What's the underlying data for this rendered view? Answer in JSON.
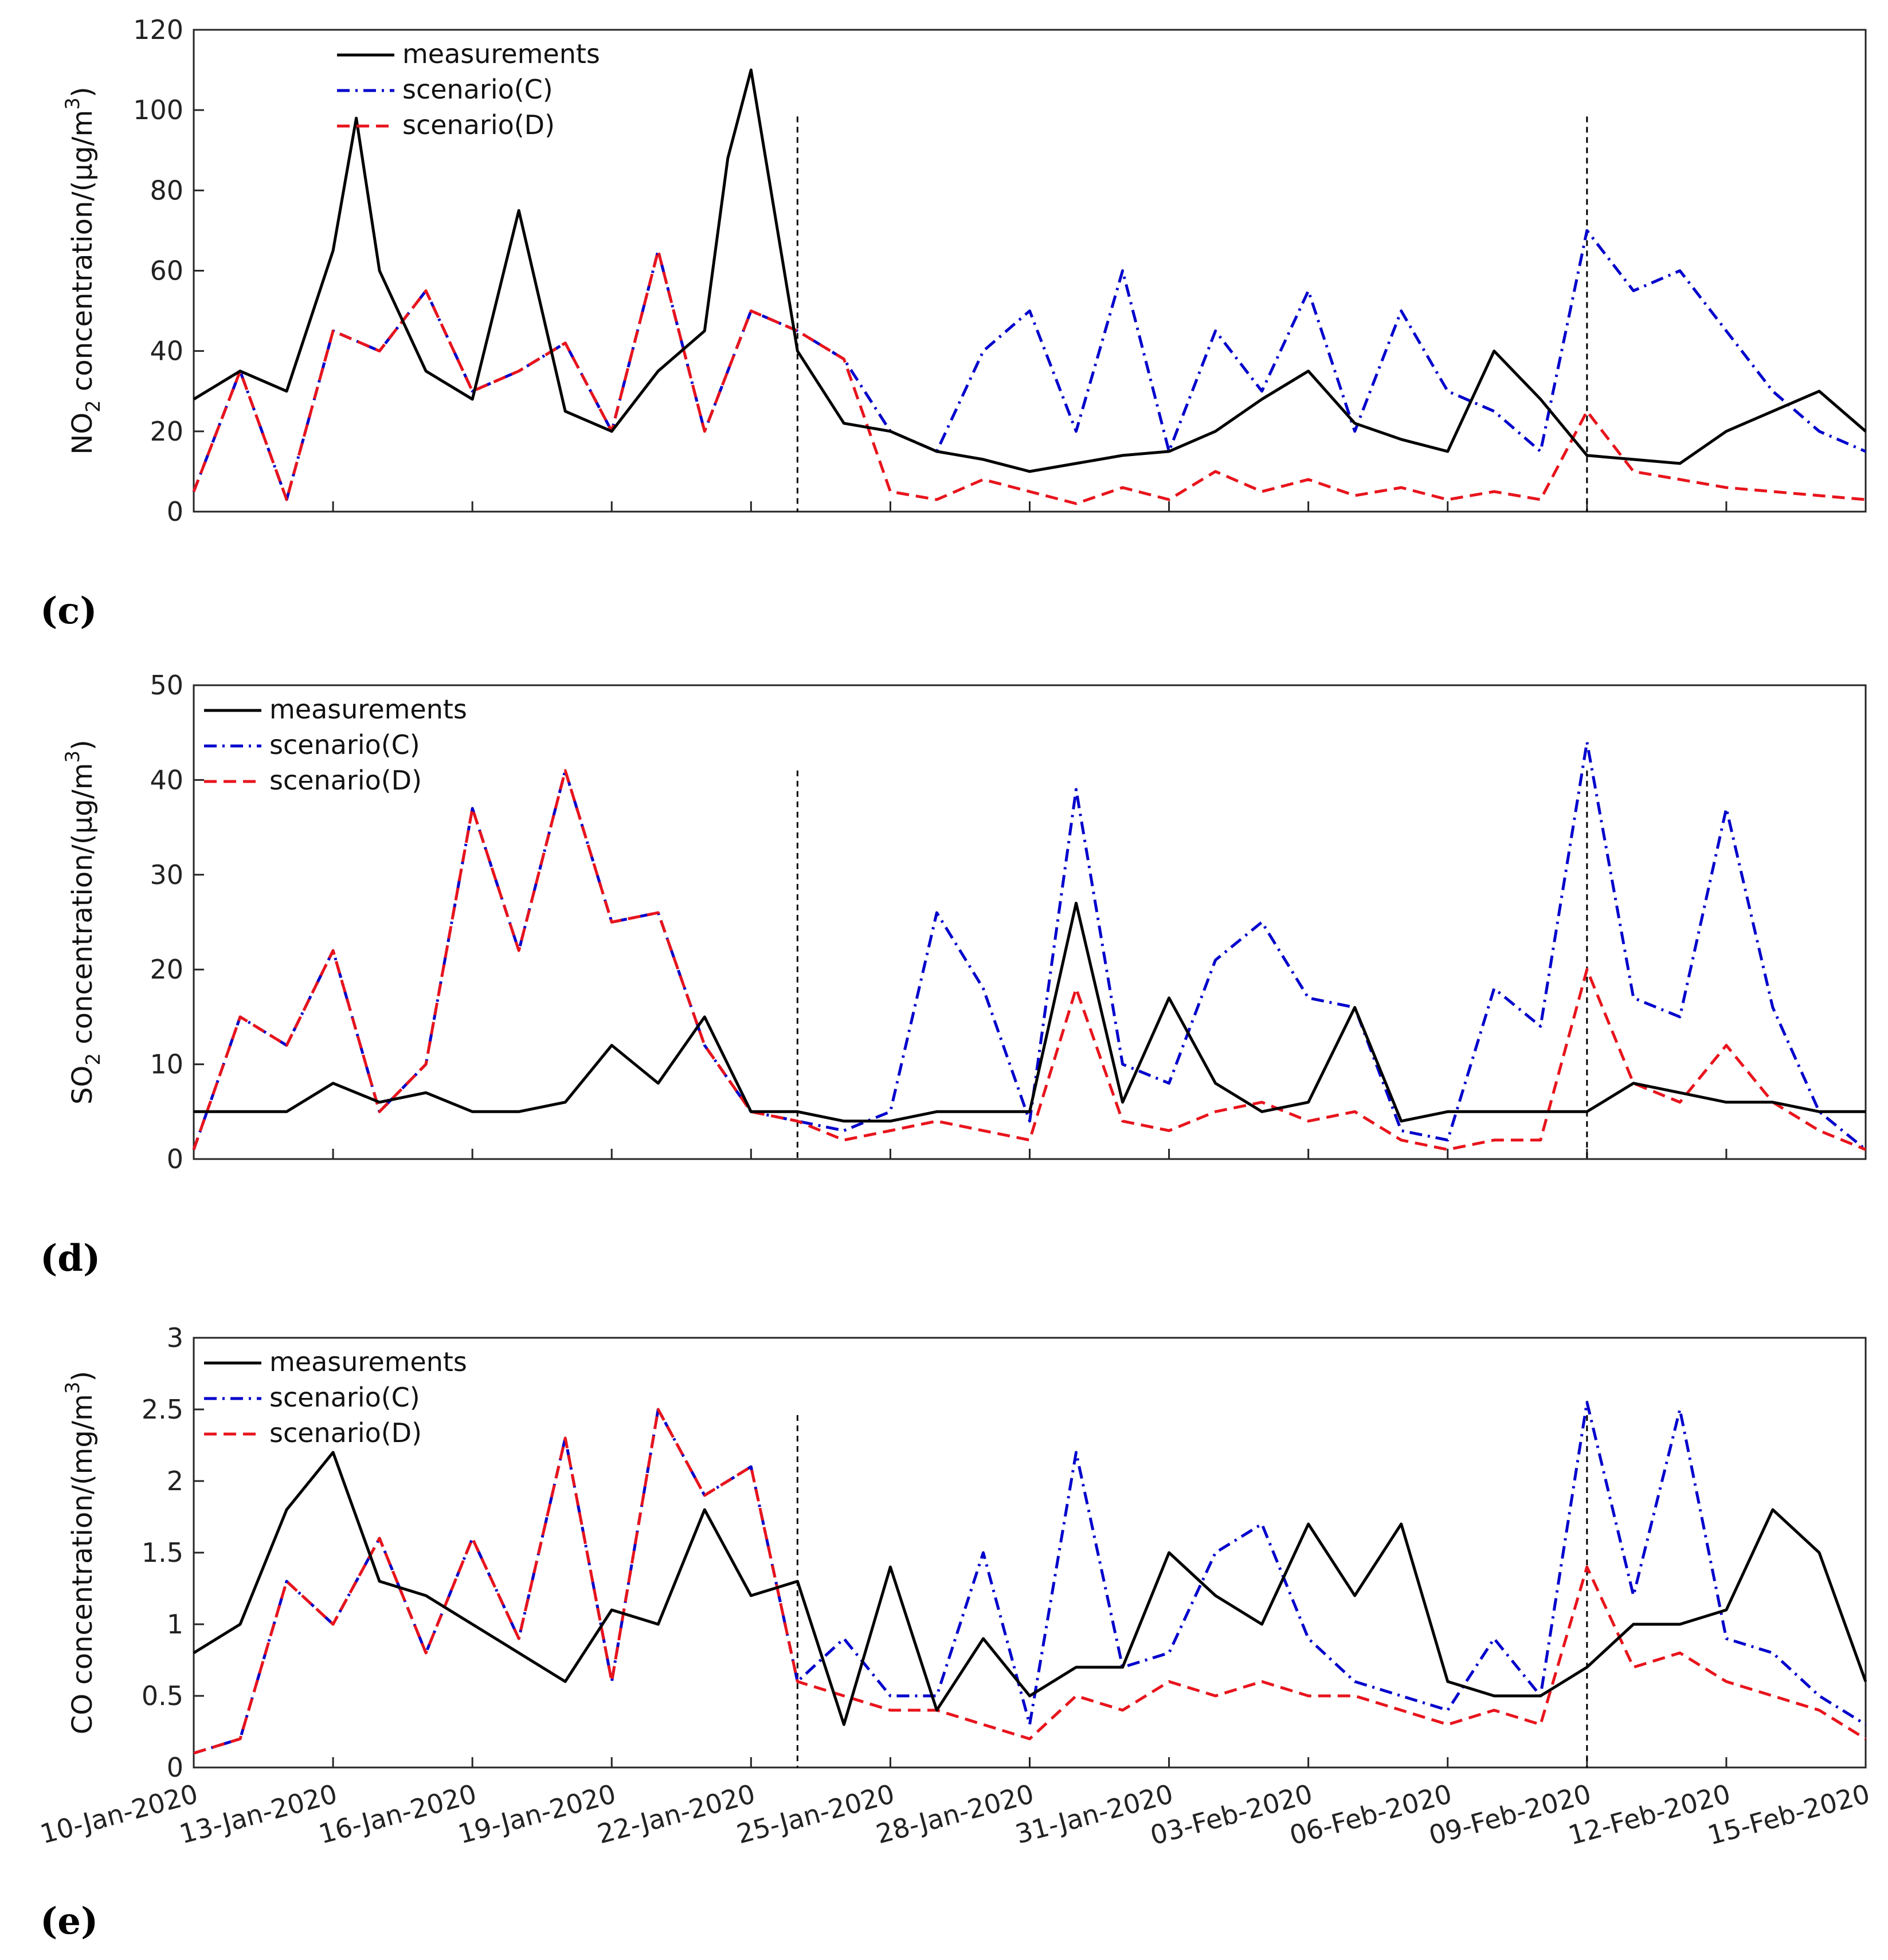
{
  "x_tick_labels": [
    "10-Jan-2020",
    "13-Jan-2020",
    "16-Jan-2020",
    "19-Jan-2020",
    "22-Jan-2020",
    "25-Jan-2020",
    "28-Jan-2020",
    "31-Jan-2020",
    "03-Feb-2020",
    "06-Feb-2020",
    "09-Feb-2020",
    "12-Feb-2020",
    "15-Feb-2020"
  ],
  "panel_labels": [
    "(c)",
    "(d)",
    "(e)"
  ],
  "legend": [
    "measurements",
    "scenario(C)",
    "scenario(D)"
  ],
  "colors": {
    "measurements": "#000000",
    "scenario_c": "#0000cc",
    "scenario_d": "#e8141c",
    "marker": "#000000"
  },
  "chart_data": [
    {
      "type": "line",
      "ylabel": "NO2 concentration/(μg/m3)",
      "ylabel_parts": {
        "a": "NO",
        "sub": "2",
        "b": " concentration/(",
        "mu": "μ",
        "c": "g/m",
        "sup": "3",
        "d": ")"
      },
      "ylim": [
        0,
        120
      ],
      "yticks": [
        0,
        20,
        40,
        60,
        80,
        100,
        120
      ],
      "xlim": [
        "2020-01-10",
        "2020-02-15"
      ],
      "vlines": [
        "2020-01-23",
        "2020-02-09"
      ],
      "legend_position": "top-left",
      "series": [
        {
          "name": "measurements",
          "style": "solid",
          "x": [
            "2020-01-10",
            "2020-01-11",
            "2020-01-12",
            "2020-01-13",
            "2020-01-13 12:00",
            "2020-01-14",
            "2020-01-15",
            "2020-01-16",
            "2020-01-17",
            "2020-01-18",
            "2020-01-19",
            "2020-01-20",
            "2020-01-21",
            "2020-01-21 12:00",
            "2020-01-22",
            "2020-01-23",
            "2020-01-24",
            "2020-01-25",
            "2020-01-26",
            "2020-01-27",
            "2020-01-28",
            "2020-01-29",
            "2020-01-30",
            "2020-01-31",
            "2020-02-01",
            "2020-02-02",
            "2020-02-03",
            "2020-02-04",
            "2020-02-05",
            "2020-02-06",
            "2020-02-07",
            "2020-02-08",
            "2020-02-09",
            "2020-02-10",
            "2020-02-11",
            "2020-02-12",
            "2020-02-13",
            "2020-02-14",
            "2020-02-15"
          ],
          "values": [
            28,
            35,
            30,
            65,
            98,
            60,
            35,
            28,
            75,
            25,
            20,
            35,
            45,
            88,
            110,
            40,
            22,
            20,
            15,
            13,
            10,
            12,
            14,
            15,
            20,
            28,
            35,
            22,
            18,
            15,
            40,
            28,
            14,
            13,
            12,
            20,
            25,
            30,
            20
          ]
        },
        {
          "name": "scenario(C)",
          "style": "dashdot",
          "x": [
            "2020-01-10",
            "2020-01-11",
            "2020-01-12",
            "2020-01-13",
            "2020-01-14",
            "2020-01-15",
            "2020-01-16",
            "2020-01-17",
            "2020-01-18",
            "2020-01-19",
            "2020-01-20",
            "2020-01-21",
            "2020-01-22",
            "2020-01-23",
            "2020-01-24",
            "2020-01-25",
            "2020-01-26",
            "2020-01-27",
            "2020-01-28",
            "2020-01-29",
            "2020-01-30",
            "2020-01-31",
            "2020-02-01",
            "2020-02-02",
            "2020-02-03",
            "2020-02-04",
            "2020-02-05",
            "2020-02-06",
            "2020-02-07",
            "2020-02-08",
            "2020-02-09",
            "2020-02-10",
            "2020-02-11",
            "2020-02-12",
            "2020-02-13",
            "2020-02-14",
            "2020-02-15"
          ],
          "values": [
            5,
            35,
            3,
            45,
            40,
            55,
            30,
            35,
            42,
            20,
            65,
            20,
            50,
            45,
            38,
            20,
            15,
            40,
            50,
            20,
            60,
            15,
            45,
            30,
            55,
            20,
            50,
            30,
            25,
            15,
            70,
            55,
            60,
            45,
            30,
            20,
            15
          ]
        },
        {
          "name": "scenario(D)",
          "style": "dashed",
          "x": [
            "2020-01-10",
            "2020-01-11",
            "2020-01-12",
            "2020-01-13",
            "2020-01-14",
            "2020-01-15",
            "2020-01-16",
            "2020-01-17",
            "2020-01-18",
            "2020-01-19",
            "2020-01-20",
            "2020-01-21",
            "2020-01-22",
            "2020-01-23",
            "2020-01-24",
            "2020-01-25",
            "2020-01-26",
            "2020-01-27",
            "2020-01-28",
            "2020-01-29",
            "2020-01-30",
            "2020-01-31",
            "2020-02-01",
            "2020-02-02",
            "2020-02-03",
            "2020-02-04",
            "2020-02-05",
            "2020-02-06",
            "2020-02-07",
            "2020-02-08",
            "2020-02-09",
            "2020-02-10",
            "2020-02-11",
            "2020-02-12",
            "2020-02-13",
            "2020-02-14",
            "2020-02-15"
          ],
          "values": [
            5,
            35,
            3,
            45,
            40,
            55,
            30,
            35,
            42,
            20,
            65,
            20,
            50,
            45,
            38,
            5,
            3,
            8,
            5,
            2,
            6,
            3,
            10,
            5,
            8,
            4,
            6,
            3,
            5,
            3,
            25,
            10,
            8,
            6,
            5,
            4,
            3
          ]
        }
      ]
    },
    {
      "type": "line",
      "ylabel": "SO2 concentration/(μg/m3)",
      "ylabel_parts": {
        "a": "SO",
        "sub": "2",
        "b": " concentration/(",
        "mu": "μ",
        "c": "g/m",
        "sup": "3",
        "d": ")"
      },
      "ylim": [
        0,
        50
      ],
      "yticks": [
        0,
        10,
        20,
        30,
        40,
        50
      ],
      "xlim": [
        "2020-01-10",
        "2020-02-15"
      ],
      "vlines": [
        "2020-01-23",
        "2020-02-09"
      ],
      "legend_position": "top-left",
      "series": [
        {
          "name": "measurements",
          "style": "solid",
          "x": [
            "2020-01-10",
            "2020-01-11",
            "2020-01-12",
            "2020-01-13",
            "2020-01-14",
            "2020-01-15",
            "2020-01-16",
            "2020-01-17",
            "2020-01-18",
            "2020-01-19",
            "2020-01-20",
            "2020-01-21",
            "2020-01-22",
            "2020-01-23",
            "2020-01-24",
            "2020-01-25",
            "2020-01-26",
            "2020-01-27",
            "2020-01-28",
            "2020-01-29",
            "2020-01-30",
            "2020-01-31",
            "2020-02-01",
            "2020-02-02",
            "2020-02-03",
            "2020-02-04",
            "2020-02-05",
            "2020-02-06",
            "2020-02-07",
            "2020-02-08",
            "2020-02-09",
            "2020-02-10",
            "2020-02-11",
            "2020-02-12",
            "2020-02-13",
            "2020-02-14",
            "2020-02-15"
          ],
          "values": [
            5,
            5,
            5,
            8,
            6,
            7,
            5,
            5,
            6,
            12,
            8,
            15,
            5,
            5,
            4,
            4,
            5,
            5,
            5,
            27,
            6,
            17,
            8,
            5,
            6,
            16,
            4,
            5,
            5,
            5,
            5,
            8,
            7,
            6,
            6,
            5,
            5
          ]
        },
        {
          "name": "scenario(C)",
          "style": "dashdot",
          "x": [
            "2020-01-10",
            "2020-01-11",
            "2020-01-12",
            "2020-01-13",
            "2020-01-14",
            "2020-01-15",
            "2020-01-16",
            "2020-01-17",
            "2020-01-18",
            "2020-01-19",
            "2020-01-20",
            "2020-01-21",
            "2020-01-22",
            "2020-01-23",
            "2020-01-24",
            "2020-01-25",
            "2020-01-26",
            "2020-01-27",
            "2020-01-28",
            "2020-01-29",
            "2020-01-30",
            "2020-01-31",
            "2020-02-01",
            "2020-02-02",
            "2020-02-03",
            "2020-02-04",
            "2020-02-05",
            "2020-02-06",
            "2020-02-07",
            "2020-02-08",
            "2020-02-09",
            "2020-02-10",
            "2020-02-11",
            "2020-02-12",
            "2020-02-13",
            "2020-02-14",
            "2020-02-15"
          ],
          "values": [
            1,
            15,
            12,
            22,
            5,
            10,
            37,
            22,
            41,
            25,
            26,
            12,
            5,
            4,
            3,
            5,
            26,
            18,
            4,
            39,
            10,
            8,
            21,
            25,
            17,
            16,
            3,
            2,
            18,
            14,
            44,
            17,
            15,
            37,
            16,
            5,
            1
          ]
        },
        {
          "name": "scenario(D)",
          "style": "dashed",
          "x": [
            "2020-01-10",
            "2020-01-11",
            "2020-01-12",
            "2020-01-13",
            "2020-01-14",
            "2020-01-15",
            "2020-01-16",
            "2020-01-17",
            "2020-01-18",
            "2020-01-19",
            "2020-01-20",
            "2020-01-21",
            "2020-01-22",
            "2020-01-23",
            "2020-01-24",
            "2020-01-25",
            "2020-01-26",
            "2020-01-27",
            "2020-01-28",
            "2020-01-29",
            "2020-01-30",
            "2020-01-31",
            "2020-02-01",
            "2020-02-02",
            "2020-02-03",
            "2020-02-04",
            "2020-02-05",
            "2020-02-06",
            "2020-02-07",
            "2020-02-08",
            "2020-02-09",
            "2020-02-10",
            "2020-02-11",
            "2020-02-12",
            "2020-02-13",
            "2020-02-14",
            "2020-02-15"
          ],
          "values": [
            1,
            15,
            12,
            22,
            5,
            10,
            37,
            22,
            41,
            25,
            26,
            12,
            5,
            4,
            2,
            3,
            4,
            3,
            2,
            18,
            4,
            3,
            5,
            6,
            4,
            5,
            2,
            1,
            2,
            2,
            20,
            8,
            6,
            12,
            6,
            3,
            1
          ]
        }
      ]
    },
    {
      "type": "line",
      "ylabel": "CO concentration/(mg/m3)",
      "ylabel_parts": {
        "a": "CO",
        "sub": "",
        "b": " concentration/(",
        "mu": "",
        "c": "mg/m",
        "sup": "3",
        "d": ")"
      },
      "ylim": [
        0,
        3
      ],
      "yticks": [
        0,
        0.5,
        1,
        1.5,
        2,
        2.5,
        3
      ],
      "xlim": [
        "2020-01-10",
        "2020-02-15"
      ],
      "vlines": [
        "2020-01-23",
        "2020-02-09"
      ],
      "legend_position": "top-left",
      "series": [
        {
          "name": "measurements",
          "style": "solid",
          "x": [
            "2020-01-10",
            "2020-01-11",
            "2020-01-12",
            "2020-01-13",
            "2020-01-14",
            "2020-01-15",
            "2020-01-16",
            "2020-01-17",
            "2020-01-18",
            "2020-01-19",
            "2020-01-20",
            "2020-01-21",
            "2020-01-22",
            "2020-01-23",
            "2020-01-24",
            "2020-01-25",
            "2020-01-26",
            "2020-01-27",
            "2020-01-28",
            "2020-01-29",
            "2020-01-30",
            "2020-01-31",
            "2020-02-01",
            "2020-02-02",
            "2020-02-03",
            "2020-02-04",
            "2020-02-05",
            "2020-02-06",
            "2020-02-07",
            "2020-02-08",
            "2020-02-09",
            "2020-02-10",
            "2020-02-11",
            "2020-02-12",
            "2020-02-13",
            "2020-02-14",
            "2020-02-15"
          ],
          "values": [
            0.8,
            1.0,
            1.8,
            2.2,
            1.3,
            1.2,
            1.0,
            0.8,
            0.6,
            1.1,
            1.0,
            1.8,
            1.2,
            1.3,
            0.3,
            1.4,
            0.4,
            0.9,
            0.5,
            0.7,
            0.7,
            1.5,
            1.2,
            1.0,
            1.7,
            1.2,
            1.7,
            0.6,
            0.5,
            0.5,
            0.7,
            1.0,
            1.0,
            1.1,
            1.8,
            1.5,
            0.6
          ]
        },
        {
          "name": "scenario(C)",
          "style": "dashdot",
          "x": [
            "2020-01-10",
            "2020-01-11",
            "2020-01-12",
            "2020-01-13",
            "2020-01-14",
            "2020-01-15",
            "2020-01-16",
            "2020-01-17",
            "2020-01-18",
            "2020-01-19",
            "2020-01-20",
            "2020-01-21",
            "2020-01-22",
            "2020-01-23",
            "2020-01-24",
            "2020-01-25",
            "2020-01-26",
            "2020-01-27",
            "2020-01-28",
            "2020-01-29",
            "2020-01-30",
            "2020-01-31",
            "2020-02-01",
            "2020-02-02",
            "2020-02-03",
            "2020-02-04",
            "2020-02-05",
            "2020-02-06",
            "2020-02-07",
            "2020-02-08",
            "2020-02-09",
            "2020-02-10",
            "2020-02-11",
            "2020-02-12",
            "2020-02-13",
            "2020-02-14",
            "2020-02-15"
          ],
          "values": [
            0.1,
            0.2,
            1.3,
            1.0,
            1.6,
            0.8,
            1.6,
            0.9,
            2.3,
            0.6,
            2.5,
            1.9,
            2.1,
            0.6,
            0.9,
            0.5,
            0.5,
            1.5,
            0.3,
            2.2,
            0.7,
            0.8,
            1.5,
            1.7,
            0.9,
            0.6,
            0.5,
            0.4,
            0.9,
            0.5,
            2.55,
            1.2,
            2.5,
            0.9,
            0.8,
            0.5,
            0.3
          ]
        },
        {
          "name": "scenario(D)",
          "style": "dashed",
          "x": [
            "2020-01-10",
            "2020-01-11",
            "2020-01-12",
            "2020-01-13",
            "2020-01-14",
            "2020-01-15",
            "2020-01-16",
            "2020-01-17",
            "2020-01-18",
            "2020-01-19",
            "2020-01-20",
            "2020-01-21",
            "2020-01-22",
            "2020-01-23",
            "2020-01-24",
            "2020-01-25",
            "2020-01-26",
            "2020-01-27",
            "2020-01-28",
            "2020-01-29",
            "2020-01-30",
            "2020-01-31",
            "2020-02-01",
            "2020-02-02",
            "2020-02-03",
            "2020-02-04",
            "2020-02-05",
            "2020-02-06",
            "2020-02-07",
            "2020-02-08",
            "2020-02-09",
            "2020-02-10",
            "2020-02-11",
            "2020-02-12",
            "2020-02-13",
            "2020-02-14",
            "2020-02-15"
          ],
          "values": [
            0.1,
            0.2,
            1.3,
            1.0,
            1.6,
            0.8,
            1.6,
            0.9,
            2.3,
            0.6,
            2.5,
            1.9,
            2.1,
            0.6,
            0.5,
            0.4,
            0.4,
            0.3,
            0.2,
            0.5,
            0.4,
            0.6,
            0.5,
            0.6,
            0.5,
            0.5,
            0.4,
            0.3,
            0.4,
            0.3,
            1.4,
            0.7,
            0.8,
            0.6,
            0.5,
            0.4,
            0.2
          ]
        }
      ]
    }
  ]
}
